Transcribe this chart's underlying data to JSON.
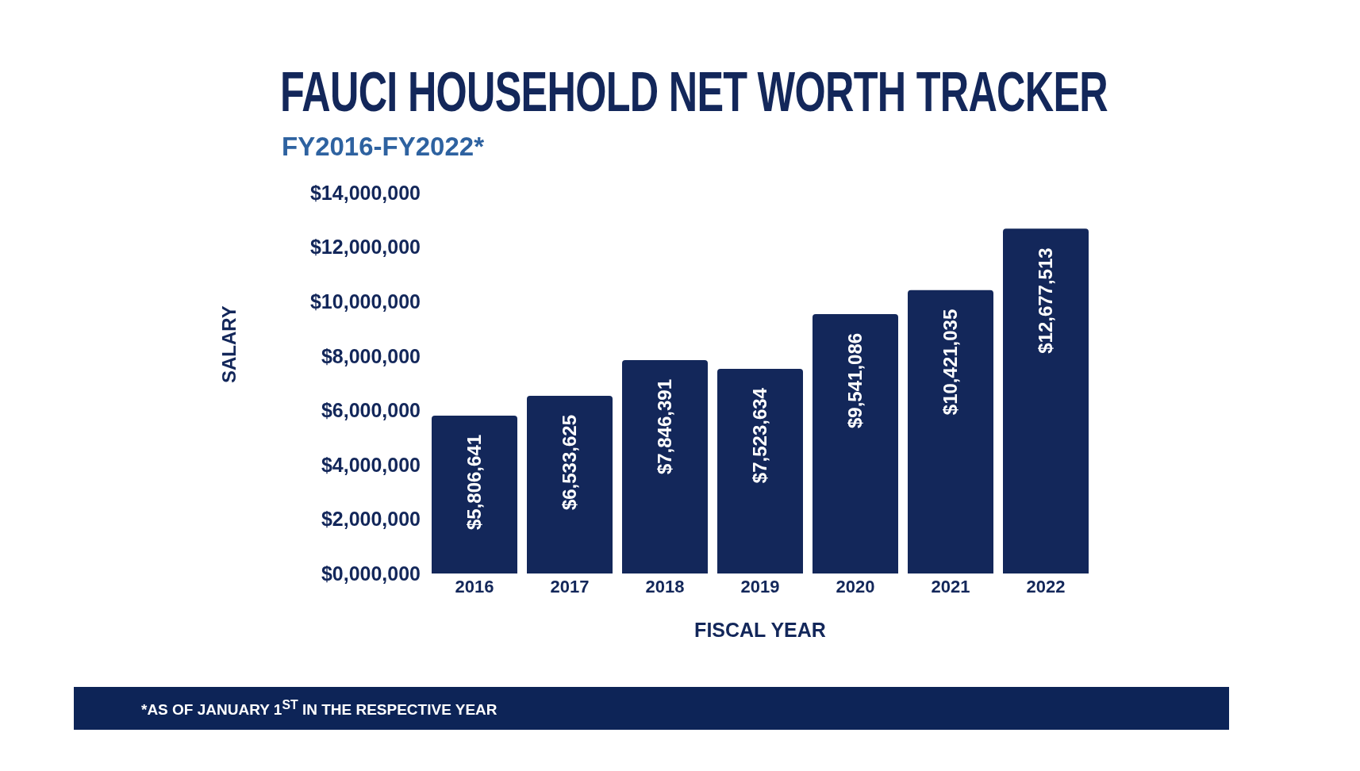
{
  "chart_data": {
    "type": "bar",
    "title": "FAUCI HOUSEHOLD NET WORTH TRACKER",
    "subtitle": "FY2016-FY2022*",
    "xlabel": "FISCAL YEAR",
    "ylabel": "SALARY",
    "categories": [
      "2016",
      "2017",
      "2018",
      "2019",
      "2020",
      "2021",
      "2022"
    ],
    "values": [
      5806641,
      6533625,
      7846391,
      7523634,
      9541086,
      10421035,
      12677513
    ],
    "value_labels": [
      "$5,806,641",
      "$6,533,625",
      "$7,846,391",
      "$7,523,634",
      "$9,541,086",
      "$10,421,035",
      "$12,677,513"
    ],
    "color": "#13275a",
    "ylim": [
      0,
      14000000
    ],
    "yticks": [
      {
        "value": 0,
        "label": "$0,000,000"
      },
      {
        "value": 2000000,
        "label": "$2,000,000"
      },
      {
        "value": 4000000,
        "label": "$4,000,000"
      },
      {
        "value": 6000000,
        "label": "$6,000,000"
      },
      {
        "value": 8000000,
        "label": "$8,000,000"
      },
      {
        "value": 10000000,
        "label": "$10,000,000"
      },
      {
        "value": 12000000,
        "label": "$12,000,000"
      },
      {
        "value": 14000000,
        "label": "$14,000,000"
      }
    ],
    "grid": false,
    "annotations": [
      "*AS OF JANUARY 1$^{ST}$ IN THE RESPECTIVE YEAR"
    ]
  }
}
